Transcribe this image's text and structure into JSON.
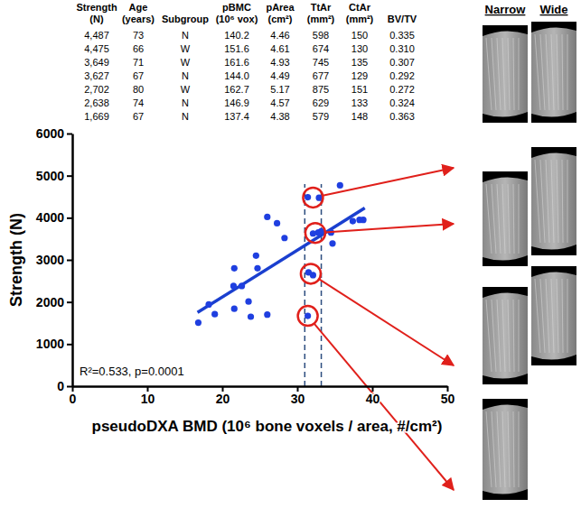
{
  "chart_data": {
    "type": "scatter",
    "x_label": "pseudoDXA BMD (10⁶ bone voxels / area, #/cm²)",
    "y_label": "Strength (N)",
    "annotations": [
      "R²=0.533, p=0.0001"
    ],
    "xlim": [
      0,
      50
    ],
    "xticks": [
      0,
      10,
      20,
      30,
      40,
      50
    ],
    "ylim": [
      0,
      6000
    ],
    "yticks": [
      0,
      1000,
      2000,
      3000,
      4000,
      5000,
      6000
    ],
    "series": [
      {
        "type": "scatter",
        "color": "#1f3fe0",
        "marker": "circle",
        "x": [
          16.8,
          18.2,
          19.0,
          21.6,
          21.5,
          21.6,
          22.6,
          23.5,
          23.8,
          24.5,
          24.7,
          26.0,
          26.0,
          27.3,
          28.3,
          31.4,
          32.9,
          32.8,
          32.1,
          31.5,
          32.1,
          31.4,
          33.2,
          34.5,
          34.7,
          35.7,
          37.4,
          38.3,
          38.8
        ],
        "values": [
          1510,
          1940,
          1710,
          2800,
          2380,
          1840,
          2380,
          2010,
          1650,
          3100,
          2800,
          1700,
          4020,
          3870,
          3520,
          4487,
          4475,
          3649,
          3627,
          2702,
          2638,
          1669,
          3680,
          3650,
          3390,
          4770,
          3920,
          3950,
          3950
        ]
      },
      {
        "type": "line",
        "color": "#1a3fcf",
        "line_style": "solid",
        "x": [
          16.7,
          39.0
        ],
        "values": [
          1750,
          4230
        ]
      }
    ],
    "circles": {
      "color": "#e0201b",
      "x": [
        32.1,
        32.4,
        31.8,
        31.4
      ],
      "y": [
        4480,
        3640,
        2670,
        1669
      ]
    },
    "dashed_lines": {
      "color": "#2b4c7e",
      "line_style": "dashed",
      "x": [
        31.0,
        33.2
      ],
      "y": [
        0,
        4800
      ]
    }
  },
  "table": {
    "columns": [
      [
        "Strength",
        "(N)"
      ],
      [
        "Age",
        "(years)"
      ],
      [
        "",
        "Subgroup"
      ],
      [
        "pBMC",
        "(10⁶ vox)"
      ],
      [
        "pArea",
        "(cm²)"
      ],
      [
        "TtAr",
        "(mm²)"
      ],
      [
        "CtAr",
        "(mm²)"
      ],
      [
        "",
        "BV/TV"
      ]
    ],
    "rows": [
      [
        "4,487",
        "73",
        "N",
        "140.2",
        "4.46",
        "598",
        "150",
        "0.335"
      ],
      [
        "4,475",
        "66",
        "W",
        "151.6",
        "4.61",
        "674",
        "130",
        "0.310"
      ],
      [
        "3,649",
        "71",
        "W",
        "161.6",
        "4.93",
        "745",
        "135",
        "0.307"
      ],
      [
        "3,627",
        "67",
        "N",
        "144.0",
        "4.49",
        "677",
        "129",
        "0.292"
      ],
      [
        "2,702",
        "80",
        "W",
        "162.7",
        "5.17",
        "875",
        "151",
        "0.272"
      ],
      [
        "2,638",
        "74",
        "N",
        "146.9",
        "4.57",
        "629",
        "133",
        "0.324"
      ],
      [
        "1,669",
        "67",
        "N",
        "137.4",
        "4.38",
        "579",
        "148",
        "0.363"
      ]
    ]
  },
  "images": {
    "headers": [
      "Narrow",
      "Wide"
    ]
  }
}
